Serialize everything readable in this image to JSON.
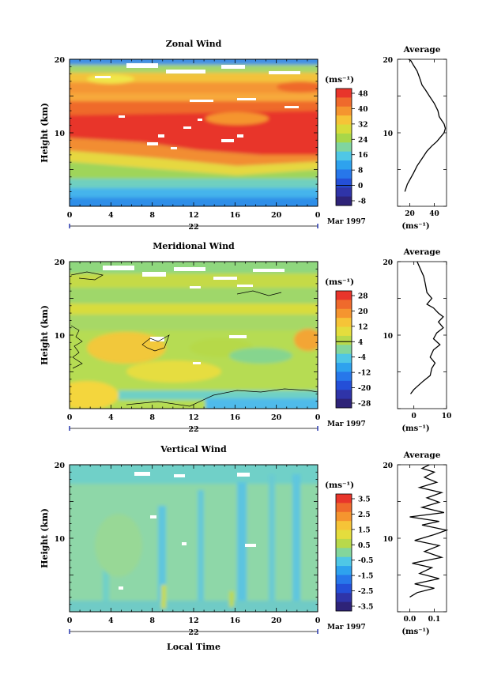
{
  "figure": {
    "xlabel": "Local Time",
    "date_label": "Mar 1997",
    "day_label": "22"
  },
  "panels": [
    {
      "id": "zonal",
      "title": "Zonal Wind",
      "ylabel": "Height (km)",
      "unit_label": "(ms⁻¹)",
      "avg_title": "Average",
      "avg_xlabel": "(ms⁻¹)",
      "cbar_ticks": [
        "48",
        "40",
        "32",
        "24",
        "16",
        "8",
        "0",
        "-8"
      ],
      "cbar_colors": [
        "#e8352b",
        "#ef6a2c",
        "#f5952f",
        "#f6c437",
        "#d7dc3a",
        "#a8d749",
        "#80d5a0",
        "#4fc7e6",
        "#2ea2ee",
        "#2777ea",
        "#244fd8",
        "#2f34a8",
        "#2e2378"
      ],
      "avg_xticks": [
        "20",
        "40"
      ],
      "avg_xlim": [
        10,
        50
      ],
      "avg_profile": [
        [
          16,
          2
        ],
        [
          18,
          3
        ],
        [
          20,
          3.6
        ],
        [
          23,
          4.5
        ],
        [
          26,
          5.5
        ],
        [
          30,
          6.5
        ],
        [
          34,
          7.5
        ],
        [
          38,
          8.2
        ],
        [
          42,
          8.8
        ],
        [
          45,
          9.4
        ],
        [
          48,
          10
        ],
        [
          49,
          10.6
        ],
        [
          48,
          11.2
        ],
        [
          46,
          11.7
        ],
        [
          44,
          12.2
        ],
        [
          43,
          13
        ],
        [
          40,
          14
        ],
        [
          36,
          15
        ],
        [
          33,
          15.8
        ],
        [
          30,
          16.5
        ],
        [
          28,
          17.5
        ],
        [
          26,
          18.4
        ],
        [
          23,
          19.2
        ],
        [
          21,
          19.8
        ],
        [
          19,
          20
        ]
      ]
    },
    {
      "id": "meridional",
      "title": "Meridional Wind",
      "ylabel": "Height (km)",
      "unit_label": "(ms⁻¹)",
      "avg_title": "Average",
      "avg_xlabel": "(ms⁻¹)",
      "cbar_ticks": [
        "28",
        "20",
        "12",
        "4",
        "-4",
        "-12",
        "-20",
        "-28"
      ],
      "cbar_colors": [
        "#e8352b",
        "#ef6a2c",
        "#f5952f",
        "#f6c437",
        "#e4dd3d",
        "#b8d94b",
        "#83d69c",
        "#4fc7e6",
        "#2ea2ee",
        "#2777ea",
        "#244fd8",
        "#2f34a8",
        "#2e2378"
      ],
      "avg_xticks": [
        "0",
        "10"
      ],
      "avg_xlim": [
        -5,
        10
      ],
      "avg_profile": [
        [
          -1,
          2
        ],
        [
          0,
          2.6
        ],
        [
          1.5,
          3.2
        ],
        [
          3,
          3.8
        ],
        [
          5,
          4.5
        ],
        [
          5.5,
          5.5
        ],
        [
          6.5,
          6.2
        ],
        [
          5,
          7
        ],
        [
          6,
          8
        ],
        [
          8,
          8.7
        ],
        [
          6,
          9.5
        ],
        [
          7,
          10.3
        ],
        [
          9,
          11
        ],
        [
          7.5,
          11.8
        ],
        [
          9,
          12.5
        ],
        [
          7.5,
          13
        ],
        [
          6,
          13.7
        ],
        [
          4,
          14.2
        ],
        [
          5.5,
          15
        ],
        [
          4,
          15.8
        ],
        [
          3.5,
          17
        ],
        [
          3,
          18
        ],
        [
          2,
          19
        ],
        [
          1,
          20
        ]
      ]
    },
    {
      "id": "vertical",
      "title": "Vertical Wind",
      "ylabel": "Height (km)",
      "unit_label": "(ms⁻¹)",
      "avg_title": "Average",
      "avg_xlabel": "(ms⁻¹)",
      "cbar_ticks": [
        "3.5",
        "2.5",
        "1.5",
        "0.5",
        "-0.5",
        "-1.5",
        "-2.5",
        "-3.5"
      ],
      "cbar_colors": [
        "#e8352b",
        "#ef6a2c",
        "#f5952f",
        "#f6c437",
        "#e4dd3d",
        "#b8d94b",
        "#83d69c",
        "#4fc7e6",
        "#2ea2ee",
        "#2777ea",
        "#244fd8",
        "#2f34a8",
        "#2e2378"
      ],
      "avg_xticks": [
        "0.0",
        "0.1"
      ],
      "avg_xlim": [
        -0.05,
        0.15
      ],
      "avg_profile": [
        [
          0.0,
          2
        ],
        [
          0.03,
          2.6
        ],
        [
          0.1,
          3.2
        ],
        [
          0.02,
          3.8
        ],
        [
          0.12,
          4.5
        ],
        [
          0.04,
          5.2
        ],
        [
          0.09,
          6
        ],
        [
          0.01,
          6.6
        ],
        [
          0.13,
          7.4
        ],
        [
          0.06,
          8.2
        ],
        [
          0.12,
          9
        ],
        [
          0.02,
          9.7
        ],
        [
          0.1,
          10.5
        ],
        [
          0.15,
          11.1
        ],
        [
          0.05,
          11.8
        ],
        [
          0.12,
          12.3
        ],
        [
          0.0,
          12.9
        ],
        [
          0.14,
          13.5
        ],
        [
          0.05,
          14.2
        ],
        [
          0.12,
          14.9
        ],
        [
          0.07,
          15.5
        ],
        [
          0.13,
          16.2
        ],
        [
          0.04,
          16.9
        ],
        [
          0.11,
          17.6
        ],
        [
          0.06,
          18.3
        ],
        [
          0.1,
          19
        ],
        [
          0.05,
          19.5
        ],
        [
          0.08,
          20
        ]
      ]
    }
  ],
  "chart_data": [
    {
      "type": "heatmap",
      "title": "Zonal Wind",
      "xlabel": "",
      "ylabel": "Height (km)",
      "x_ticks": [
        "0",
        "4",
        "8",
        "12",
        "16",
        "20",
        "0"
      ],
      "y_ticks": [
        "20",
        "10"
      ],
      "xlim": [
        0,
        24
      ],
      "ylim": [
        0,
        20
      ],
      "colorbar": {
        "label": "(ms⁻¹)",
        "ticks": [
          48,
          40,
          32,
          24,
          16,
          8,
          0,
          -8
        ]
      },
      "height_km": [
        1,
        3,
        5,
        7,
        9,
        11,
        13,
        15,
        17,
        19
      ],
      "values_typical_ms": [
        14,
        18,
        24,
        30,
        44,
        48,
        40,
        32,
        24,
        14
      ]
    },
    {
      "type": "line",
      "title": "Average",
      "xlabel": "(ms⁻¹)",
      "ylabel": "",
      "x_ticks": [
        "20",
        "40"
      ],
      "y_ticks": [
        "20",
        "10"
      ],
      "xlim": [
        10,
        50
      ],
      "ylim": [
        0,
        20
      ],
      "series": [
        {
          "x": [
            16,
            20,
            26,
            34,
            42,
            48,
            49,
            46,
            43,
            36,
            30,
            26,
            21,
            19
          ],
          "y": [
            2,
            3.6,
            5.5,
            7.5,
            8.8,
            10,
            10.6,
            11.7,
            13,
            15,
            16.5,
            18.4,
            19.8,
            20
          ]
        }
      ]
    },
    {
      "type": "heatmap",
      "title": "Meridional Wind",
      "xlabel": "",
      "ylabel": "Height (km)",
      "x_ticks": [
        "0",
        "4",
        "8",
        "12",
        "16",
        "20",
        "0"
      ],
      "y_ticks": [
        "20",
        "10"
      ],
      "xlim": [
        0,
        24
      ],
      "ylim": [
        0,
        20
      ],
      "colorbar": {
        "label": "(ms⁻¹)",
        "ticks": [
          28,
          20,
          12,
          4,
          -4,
          -12,
          -20,
          -28
        ]
      },
      "height_km": [
        1,
        3,
        5,
        7,
        9,
        11,
        13,
        15,
        17,
        19
      ],
      "values_typical_ms": [
        0,
        4,
        10,
        8,
        6,
        10,
        8,
        6,
        2,
        -2
      ]
    },
    {
      "type": "line",
      "title": "Average",
      "xlabel": "(ms⁻¹)",
      "ylabel": "",
      "x_ticks": [
        "0",
        "10"
      ],
      "y_ticks": [
        "20",
        "10"
      ],
      "xlim": [
        -5,
        10
      ],
      "ylim": [
        0,
        20
      ],
      "series": [
        {
          "x": [
            -1,
            1.5,
            5,
            6.5,
            6,
            8,
            7,
            9,
            7.5,
            6,
            4,
            5.5,
            3.5,
            2,
            1
          ],
          "y": [
            2,
            3.2,
            4.5,
            6.2,
            8,
            8.7,
            10.3,
            11,
            11.8,
            13.7,
            14.2,
            15,
            17,
            19,
            20
          ]
        }
      ]
    },
    {
      "type": "heatmap",
      "title": "Vertical Wind",
      "xlabel": "Local Time",
      "ylabel": "Height (km)",
      "x_ticks": [
        "0",
        "4",
        "8",
        "12",
        "16",
        "20",
        "0"
      ],
      "y_ticks": [
        "20",
        "10"
      ],
      "xlim": [
        0,
        24
      ],
      "ylim": [
        0,
        20
      ],
      "colorbar": {
        "label": "(ms⁻¹)",
        "ticks": [
          3.5,
          2.5,
          1.5,
          0.5,
          -0.5,
          -1.5,
          -2.5,
          -3.5
        ]
      },
      "height_km": [
        1,
        3,
        5,
        7,
        9,
        11,
        13,
        15,
        17,
        19
      ],
      "values_typical_ms": [
        0,
        0.1,
        -0.1,
        0.1,
        0.2,
        0,
        0.1,
        -0.2,
        0,
        -0.3
      ]
    },
    {
      "type": "line",
      "title": "Average",
      "xlabel": "(ms⁻¹)",
      "ylabel": "",
      "x_ticks": [
        "0.0",
        "0.1"
      ],
      "y_ticks": [
        "20",
        "10"
      ],
      "xlim": [
        -0.05,
        0.15
      ],
      "ylim": [
        0,
        20
      ],
      "series": [
        {
          "x": [
            0.0,
            0.1,
            0.12,
            0.09,
            0.13,
            0.12,
            0.1,
            0.15,
            0.12,
            0.14,
            0.12,
            0.13,
            0.11,
            0.1,
            0.08
          ],
          "y": [
            2,
            3.2,
            4.5,
            6,
            7.4,
            9,
            10.5,
            11.1,
            12.3,
            13.5,
            14.9,
            16.2,
            17.6,
            19,
            20
          ]
        }
      ]
    }
  ]
}
